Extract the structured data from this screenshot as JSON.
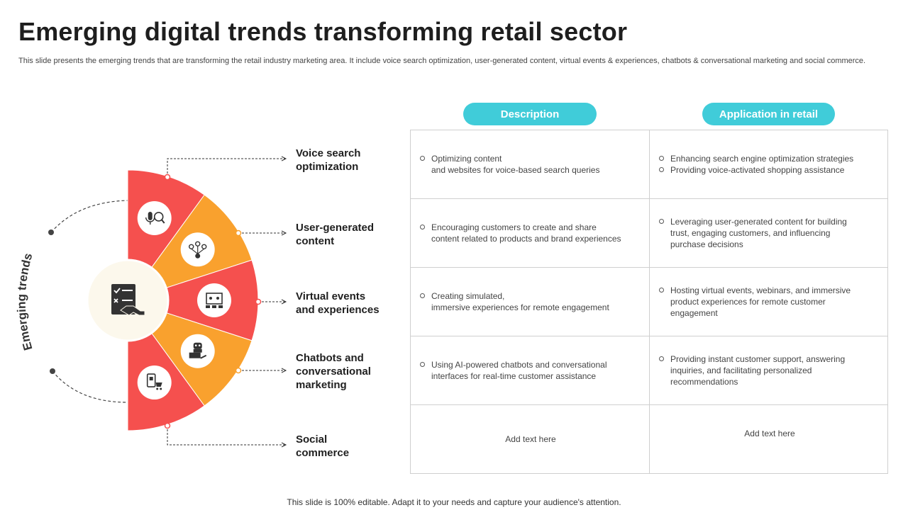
{
  "slide": {
    "title": "Emerging digital trends transforming retail sector",
    "subtitle": "This slide presents the emerging trends that are transforming the retail industry marketing area. It include voice search optimization, user-generated content, virtual events & experiences, chatbots & conversational marketing and social commerce.",
    "footer": "This slide is 100% editable. Adapt it to your needs and capture your audience's attention."
  },
  "diagram": {
    "center_label": "Emerging trends",
    "center_icon": "checklist-handshake-icon",
    "segment_colors": [
      "#f5504e",
      "#f9a12e",
      "#f5504e",
      "#f9a12e",
      "#f5504e"
    ],
    "segment_icons": [
      "voice-search-icon",
      "user-network-icon",
      "virtual-event-icon",
      "chatbot-icon",
      "social-shop-icon"
    ]
  },
  "trends": [
    {
      "label": "Voice search\noptimization"
    },
    {
      "label": "User-generated\ncontent"
    },
    {
      "label": "Virtual events\nand experiences"
    },
    {
      "label": "Chatbots and\nconversational\nmarketing"
    },
    {
      "label": "Social\ncommerce"
    }
  ],
  "table": {
    "headers": {
      "description": "Description",
      "application": "Application in retail"
    },
    "header_color": "#40ccd9",
    "rows": [
      {
        "description": [
          "Optimizing content\nand websites for voice-based  search queries"
        ],
        "application": [
          "Enhancing search engine optimization strategies",
          "Providing voice-activated  shopping assistance"
        ]
      },
      {
        "description": [
          "Encouraging customers to create and share\ncontent related to products and brand experiences"
        ],
        "application": [
          "Leveraging  user-generated  content for building\ntrust, engaging customers, and influencing\npurchase decisions"
        ]
      },
      {
        "description": [
          "Creating simulated,\nimmersive  experiences for remote engagement"
        ],
        "application": [
          "Hosting virtual events, webinars,  and immersive\nproduct experiences for remote customer\nengagement"
        ]
      },
      {
        "description": [
          "Using AI-powered  chatbots and conversational\ninterfaces for real-time  customer assistance"
        ],
        "application": [
          "Providing  instant customer support,  answering\ninquiries,  and facilitating personalized\nrecommendations"
        ]
      },
      {
        "description_placeholder": "Add text here",
        "application_placeholder": "Add text here"
      }
    ]
  }
}
